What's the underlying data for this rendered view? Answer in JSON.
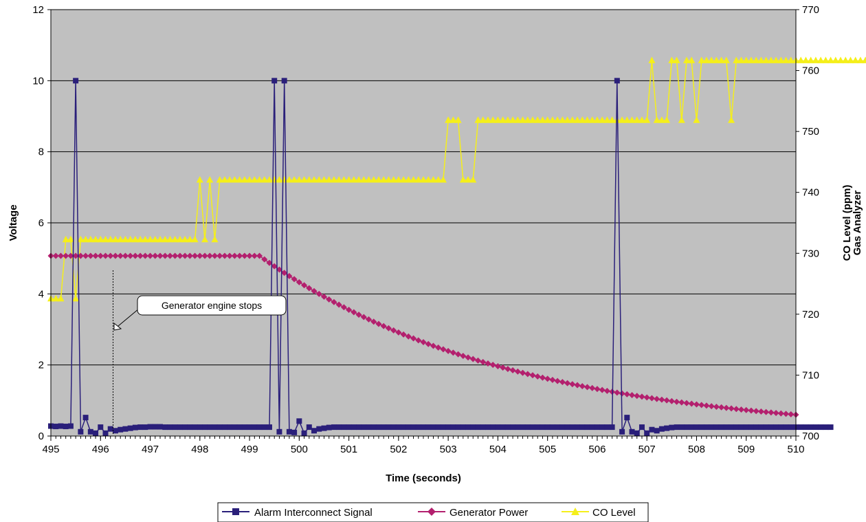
{
  "chart_data": {
    "type": "line",
    "xlabel": "Time (seconds)",
    "ylabel": "Voltage",
    "y2label_line1": "CO Level (ppm)",
    "y2label_line2": "Gas Analyzer",
    "xlim": [
      495,
      510
    ],
    "ylim": [
      0,
      12
    ],
    "y2lim": [
      700,
      770
    ],
    "x_ticks": [
      "495",
      "496",
      "497",
      "498",
      "499",
      "500",
      "501",
      "502",
      "503",
      "504",
      "505",
      "506",
      "507",
      "508",
      "509",
      "510"
    ],
    "y_ticks": [
      "0",
      "2",
      "4",
      "6",
      "8",
      "10",
      "12"
    ],
    "y2_ticks": [
      "700",
      "710",
      "720",
      "730",
      "740",
      "750",
      "760",
      "770"
    ],
    "x_minor_step": 0.1,
    "grid": "horizontal",
    "plot_background": "#c0c0c0",
    "annotation": {
      "text": "Generator engine stops",
      "x": 496.2,
      "y": 3.0
    },
    "legend": {
      "position": "bottom-center",
      "entries": [
        "Alarm Interconnect Signal",
        "Generator Power",
        "CO Level"
      ]
    },
    "series": [
      {
        "name": "Alarm Interconnect Signal",
        "axis": "left",
        "color": "#2a1f7a",
        "marker": "square",
        "x_start": 495.0,
        "x_step": 0.1,
        "values": [
          0.28,
          0.27,
          0.28,
          0.27,
          0.28,
          10,
          0.12,
          0.52,
          0.12,
          0.08,
          0.25,
          0.08,
          0.2,
          0.15,
          0.18,
          0.2,
          0.22,
          0.24,
          0.25,
          0.25,
          0.26,
          0.26,
          0.26,
          0.25,
          0.25,
          0.25,
          0.25,
          0.25,
          0.25,
          0.25,
          0.25,
          0.25,
          0.25,
          0.25,
          0.25,
          0.25,
          0.25,
          0.25,
          0.25,
          0.25,
          0.25,
          0.25,
          0.25,
          0.25,
          0.25,
          10,
          0.12,
          10,
          0.12,
          0.1,
          0.42,
          0.08,
          0.25,
          0.15,
          0.2,
          0.22,
          0.24,
          0.25,
          0.25,
          0.25,
          0.25,
          0.25,
          0.25,
          0.25,
          0.25,
          0.25,
          0.25,
          0.25,
          0.25,
          0.25,
          0.25,
          0.25,
          0.25,
          0.25,
          0.25,
          0.25,
          0.25,
          0.25,
          0.25,
          0.25,
          0.25,
          0.25,
          0.25,
          0.25,
          0.25,
          0.25,
          0.25,
          0.25,
          0.25,
          0.25,
          0.25,
          0.25,
          0.25,
          0.25,
          0.25,
          0.25,
          0.25,
          0.25,
          0.25,
          0.25,
          0.25,
          0.25,
          0.25,
          0.25,
          0.25,
          0.25,
          0.25,
          0.25,
          0.25,
          0.25,
          0.25,
          0.25,
          0.25,
          0.25,
          10,
          0.12,
          0.52,
          0.12,
          0.08,
          0.25,
          0.08,
          0.18,
          0.15,
          0.2,
          0.22,
          0.24,
          0.25,
          0.25,
          0.25,
          0.25,
          0.25,
          0.25,
          0.25,
          0.25,
          0.25,
          0.25,
          0.25,
          0.25,
          0.25,
          0.25,
          0.25,
          0.25,
          0.25,
          0.25,
          0.25,
          0.25,
          0.25,
          0.25,
          0.25,
          0.25,
          0.25,
          0.25,
          0.25,
          0.25,
          0.25,
          0.25,
          0.25,
          0.25
        ]
      },
      {
        "name": "Generator Power",
        "axis": "left",
        "color": "#b3206e",
        "marker": "diamond",
        "x_start": 495.0,
        "x_step": 0.1,
        "flat_value": 5.07,
        "flat_until": 499.2,
        "decay_end_value": 0.6,
        "decay_end_x": 510.0
      },
      {
        "name": "CO Level",
        "axis": "right",
        "color": "#f5ef1a",
        "marker": "triangle",
        "x_start": 495.0,
        "x_step": 0.1,
        "values": [
          722.5,
          722.5,
          722.5,
          732.2,
          732.2,
          722.5,
          732.2,
          732.2,
          732.2,
          732.2,
          732.2,
          732.2,
          732.2,
          732.2,
          732.2,
          732.2,
          732.2,
          732.2,
          732.2,
          732.2,
          732.2,
          732.2,
          732.2,
          732.2,
          732.2,
          732.2,
          732.2,
          732.2,
          732.2,
          732.2,
          742,
          732.2,
          742,
          732.2,
          742,
          742,
          742,
          742,
          742,
          742,
          742,
          742,
          742,
          742,
          742,
          742,
          742,
          742,
          742,
          742,
          742,
          742,
          742,
          742,
          742,
          742,
          742,
          742,
          742,
          742,
          742,
          742,
          742,
          742,
          742,
          742,
          742,
          742,
          742,
          742,
          742,
          742,
          742,
          742,
          742,
          742,
          742,
          742,
          742,
          742,
          751.8,
          751.8,
          751.8,
          742,
          742,
          742,
          751.8,
          751.8,
          751.8,
          751.8,
          751.8,
          751.8,
          751.8,
          751.8,
          751.8,
          751.8,
          751.8,
          751.8,
          751.8,
          751.8,
          751.8,
          751.8,
          751.8,
          751.8,
          751.8,
          751.8,
          751.8,
          751.8,
          751.8,
          751.8,
          751.8,
          751.8,
          751.8,
          751.8,
          751.8,
          751.8,
          751.8,
          751.8,
          751.8,
          751.8,
          751.8,
          761.6,
          751.8,
          751.8,
          751.8,
          761.6,
          761.6,
          751.8,
          761.6,
          761.6,
          751.8,
          761.6,
          761.6,
          761.6,
          761.6,
          761.6,
          761.6,
          751.8,
          761.6,
          761.6,
          761.6,
          761.6,
          761.6,
          761.6,
          761.6,
          761.6,
          761.6,
          761.6,
          761.6,
          761.6,
          761.6,
          761.6,
          761.6,
          761.6,
          761.6,
          761.6,
          761.6,
          761.6,
          761.6,
          761.6,
          761.6,
          761.6,
          761.6,
          761.6,
          761.6,
          761.6
        ]
      }
    ]
  }
}
